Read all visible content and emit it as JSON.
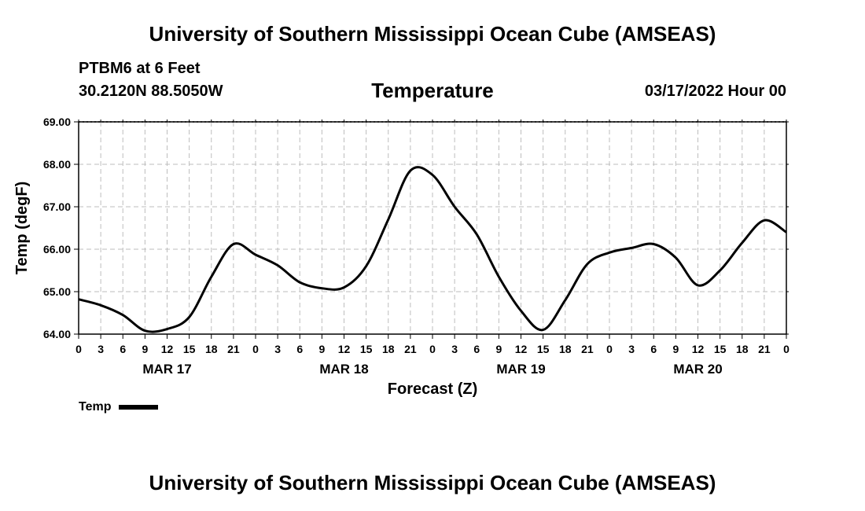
{
  "header": {
    "title": "University of Southern Mississippi Ocean Cube (AMSEAS)",
    "station": "PTBM6 at 6 Feet",
    "coords": "30.2120N  88.5050W",
    "chart_title": "Temperature",
    "datetime": "03/17/2022 Hour 00"
  },
  "footer": {
    "title": "University of Southern Mississippi Ocean Cube (AMSEAS)"
  },
  "legend": {
    "label": "Temp",
    "color": "#000000"
  },
  "chart_data": {
    "type": "line",
    "title": "Temperature",
    "xlabel": "Forecast (Z)",
    "ylabel": "Temp (degF)",
    "ylim": [
      64,
      69
    ],
    "xlim": [
      0,
      96
    ],
    "y_ticks": [
      "64.00",
      "65.00",
      "66.00",
      "67.00",
      "68.00",
      "69.00"
    ],
    "x_tick_labels": [
      "0",
      "3",
      "6",
      "9",
      "12",
      "15",
      "18",
      "21",
      "0",
      "3",
      "6",
      "9",
      "12",
      "15",
      "18",
      "21",
      "0",
      "3",
      "6",
      "9",
      "12",
      "15",
      "18",
      "21",
      "0",
      "3",
      "6",
      "9",
      "12",
      "15",
      "18",
      "21",
      "0"
    ],
    "day_labels": [
      {
        "label": "MAR 17",
        "hour": 12
      },
      {
        "label": "MAR 18",
        "hour": 36
      },
      {
        "label": "MAR 19",
        "hour": 60
      },
      {
        "label": "MAR 20",
        "hour": 84
      }
    ],
    "grid": true,
    "series": [
      {
        "name": "Temp",
        "x": [
          0,
          3,
          6,
          9,
          12,
          15,
          18,
          21,
          24,
          27,
          30,
          33,
          36,
          39,
          42,
          45,
          48,
          51,
          54,
          57,
          60,
          63,
          66,
          69,
          72,
          75,
          78,
          81,
          84,
          87,
          90,
          93,
          96
        ],
        "values": [
          64.82,
          64.68,
          64.45,
          64.08,
          64.12,
          64.4,
          65.35,
          66.12,
          65.87,
          65.62,
          65.22,
          65.08,
          65.1,
          65.6,
          66.7,
          67.85,
          67.75,
          67.0,
          66.35,
          65.35,
          64.55,
          64.1,
          64.8,
          65.65,
          65.92,
          66.03,
          66.12,
          65.8,
          65.15,
          65.5,
          66.15,
          66.68,
          66.4
        ]
      }
    ]
  }
}
